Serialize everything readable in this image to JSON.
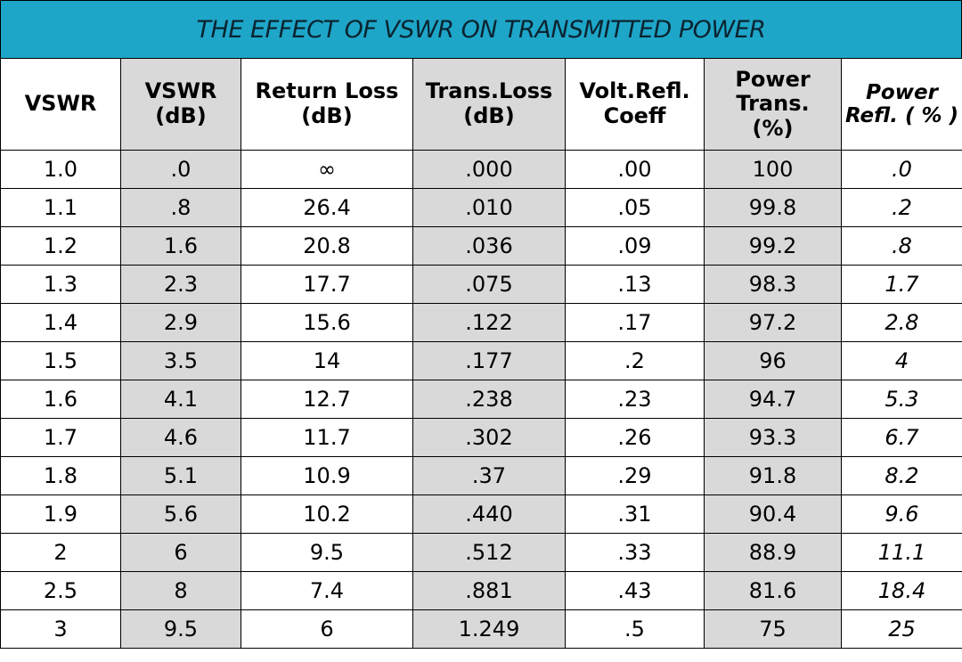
{
  "title": "THE EFFECT OF VSWR ON TRANSMITTED POWER",
  "colors": {
    "title_bar": "#1ea6c9",
    "shaded_column": "#d9d9d9"
  },
  "headers": [
    {
      "lines": [
        "VSWR"
      ]
    },
    {
      "lines": [
        "VSWR",
        "(dB)"
      ]
    },
    {
      "lines": [
        "Return Loss",
        "(dB)"
      ]
    },
    {
      "lines": [
        "Trans.Loss",
        "(dB)"
      ]
    },
    {
      "lines": [
        "Volt.Refl.",
        "Coeff"
      ]
    },
    {
      "lines": [
        "Power",
        "Trans.",
        "(%)"
      ]
    },
    {
      "lines": [
        "Power",
        "Refl. ( % )"
      ]
    }
  ],
  "rows": [
    [
      "1.0",
      ".0",
      "∞",
      ".000",
      ".00",
      "100",
      ".0"
    ],
    [
      "1.1",
      ".8",
      "26.4",
      ".010",
      ".05",
      "99.8",
      ".2"
    ],
    [
      "1.2",
      "1.6",
      "20.8",
      ".036",
      ".09",
      "99.2",
      ".8"
    ],
    [
      "1.3",
      "2.3",
      "17.7",
      ".075",
      ".13",
      "98.3",
      "1.7"
    ],
    [
      "1.4",
      "2.9",
      "15.6",
      ".122",
      ".17",
      "97.2",
      "2.8"
    ],
    [
      "1.5",
      "3.5",
      "14",
      ".177",
      ".2",
      "96",
      "4"
    ],
    [
      "1.6",
      "4.1",
      "12.7",
      ".238",
      ".23",
      "94.7",
      "5.3"
    ],
    [
      "1.7",
      "4.6",
      "11.7",
      ".302",
      ".26",
      "93.3",
      "6.7"
    ],
    [
      "1.8",
      "5.1",
      "10.9",
      ".37",
      ".29",
      "91.8",
      "8.2"
    ],
    [
      "1.9",
      "5.6",
      "10.2",
      ".440",
      ".31",
      "90.4",
      "9.6"
    ],
    [
      "2",
      "6",
      "9.5",
      ".512",
      ".33",
      "88.9",
      "11.1"
    ],
    [
      "2.5",
      "8",
      "7.4",
      ".881",
      ".43",
      "81.6",
      "18.4"
    ],
    [
      "3",
      "9.5",
      "6",
      "1.249",
      ".5",
      "75",
      "25"
    ]
  ]
}
